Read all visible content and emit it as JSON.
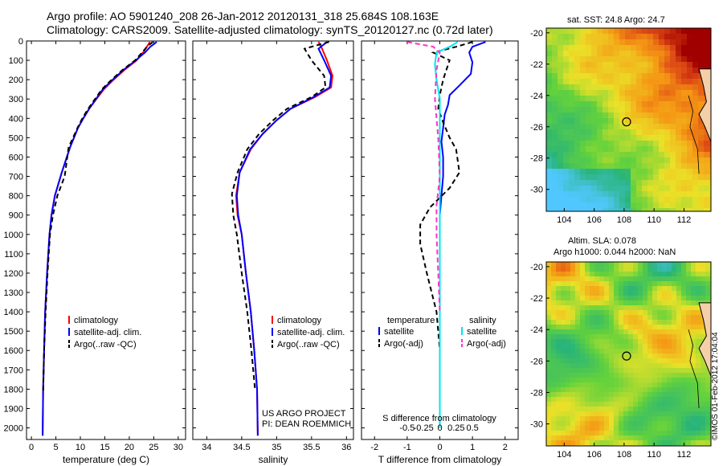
{
  "header": {
    "line1": "Argo profile: AO 5901240_208 26-Jan-2012 20120131_318 25.684S 108.163E",
    "line2": "Climatology: CARS2009. Satellite-adjusted climatology: synTS_20120127.nc (0.72d later)"
  },
  "colors": {
    "climatology": "#ff0000",
    "satellite": "#0000ff",
    "argo": "#000000",
    "sal_satellite": "#00e5ee",
    "sal_argo": "#ff33cc"
  },
  "chart_data": [
    {
      "type": "line",
      "name": "temperature-profile",
      "xlabel": "temperature (deg C)",
      "ylabel": "",
      "xlim": [
        -1,
        31.5
      ],
      "ylim": [
        2060,
        0
      ],
      "xticks": [
        0,
        5,
        10,
        15,
        20,
        25,
        30
      ],
      "yticks": [
        0,
        100,
        200,
        300,
        400,
        500,
        600,
        700,
        800,
        900,
        1000,
        1100,
        1200,
        1300,
        1400,
        1500,
        1600,
        1700,
        1800,
        1900,
        2000
      ],
      "legend": [
        "climatology",
        "satellite-adj. clim.",
        "Argo(..raw -QC)"
      ],
      "legend_position": "lower-center",
      "series": [
        {
          "name": "climatology",
          "style": "solid",
          "x": [
            24.2,
            23.6,
            22.8,
            21.5,
            19.0,
            16.8,
            14.8,
            13.3,
            11.8,
            10.6,
            9.5,
            7.9,
            6.2,
            4.8,
            4.1,
            3.7,
            3.2,
            2.8,
            2.6,
            2.4,
            2.3
          ],
          "y": [
            5,
            30,
            60,
            100,
            150,
            200,
            250,
            300,
            350,
            400,
            450,
            550,
            680,
            800,
            900,
            1000,
            1200,
            1400,
            1600,
            1800,
            2040
          ]
        },
        {
          "name": "satellite-adj. clim.",
          "style": "solid",
          "x": [
            25.6,
            24.3,
            23.2,
            21.3,
            18.8,
            16.6,
            14.6,
            13.2,
            11.8,
            10.6,
            9.5,
            7.9,
            6.2,
            4.8,
            4.1,
            3.7,
            3.2,
            2.8,
            2.6,
            2.4,
            2.3
          ],
          "y": [
            5,
            30,
            60,
            100,
            150,
            200,
            250,
            300,
            350,
            400,
            450,
            550,
            680,
            800,
            900,
            1000,
            1200,
            1400,
            1600,
            1800,
            2040
          ]
        },
        {
          "name": "Argo(..raw -QC)",
          "style": "dashed",
          "x": [
            24.8,
            23.6,
            22.6,
            21.2,
            18.6,
            16.4,
            14.4,
            13.0,
            11.6,
            10.4,
            9.4,
            7.6,
            6.8,
            5.3,
            4.4,
            3.8,
            3.3,
            2.9,
            2.6,
            2.4
          ],
          "y": [
            5,
            30,
            60,
            100,
            150,
            200,
            250,
            300,
            350,
            400,
            450,
            550,
            700,
            800,
            900,
            1000,
            1200,
            1400,
            1600,
            1820
          ]
        }
      ]
    },
    {
      "type": "line",
      "name": "salinity-profile",
      "xlabel": "salinity",
      "ylabel": "",
      "xlim": [
        33.8,
        36.1
      ],
      "ylim": [
        2060,
        0
      ],
      "xticks": [
        34,
        34.5,
        35,
        35.5,
        36
      ],
      "legend": [
        "climatology",
        "satellite-adj. clim.",
        "Argo(..raw -QC)"
      ],
      "legend_position": "lower-right",
      "annotation": [
        "US ARGO PROJECT",
        "PI: DEAN ROEMMICH"
      ],
      "series": [
        {
          "name": "climatology",
          "style": "solid",
          "x": [
            35.6,
            35.65,
            35.72,
            35.8,
            35.78,
            35.55,
            35.2,
            35.0,
            34.8,
            34.63,
            34.47,
            34.42,
            34.44,
            34.5,
            34.56,
            34.63,
            34.68,
            34.72,
            34.73
          ],
          "y": [
            5,
            40,
            100,
            180,
            240,
            290,
            350,
            410,
            480,
            560,
            680,
            800,
            900,
            1000,
            1200,
            1400,
            1600,
            1800,
            2040
          ]
        },
        {
          "name": "satellite-adj. clim.",
          "style": "solid",
          "x": [
            35.72,
            35.6,
            35.68,
            35.78,
            35.76,
            35.53,
            35.2,
            35.0,
            34.8,
            34.62,
            34.47,
            34.43,
            34.45,
            34.5,
            34.56,
            34.63,
            34.68,
            34.72,
            34.73
          ],
          "y": [
            5,
            40,
            100,
            180,
            240,
            290,
            350,
            410,
            480,
            560,
            680,
            800,
            900,
            1000,
            1200,
            1400,
            1600,
            1800,
            2040
          ]
        },
        {
          "name": "Argo(..raw -QC)",
          "style": "dashed",
          "x": [
            35.75,
            35.4,
            35.5,
            35.68,
            35.7,
            35.5,
            35.15,
            34.95,
            34.75,
            34.58,
            34.44,
            34.36,
            34.38,
            34.43,
            34.5,
            34.58,
            34.64,
            34.69
          ],
          "y": [
            5,
            40,
            100,
            180,
            240,
            290,
            350,
            410,
            480,
            560,
            680,
            790,
            900,
            1000,
            1200,
            1400,
            1600,
            1800
          ]
        }
      ]
    },
    {
      "type": "line",
      "name": "difference-profile",
      "xlabel": "T difference from climatology",
      "top_axis_label": "S difference from climatology",
      "xlim": [
        -2.4,
        2.4
      ],
      "ylim": [
        2060,
        0
      ],
      "xticks": [
        -2,
        -1,
        0,
        1,
        2
      ],
      "top_tick_labels": [
        "-0.5",
        "-0.25",
        "0",
        "0.25",
        "0.5"
      ],
      "legend_groups": [
        "temperature",
        "salinity"
      ],
      "legend": [
        "satellite",
        "Argo(-adj)",
        "satellite",
        "Argo(-adj)"
      ],
      "legend_position": "lower-center",
      "series": [
        {
          "name": "temperature satellite",
          "style": "solid",
          "x": [
            1.4,
            1.0,
            0.9,
            1.0,
            0.95,
            0.6,
            0.3,
            0.25,
            0.15,
            0.1,
            0.05,
            0.1,
            0.1,
            0.05,
            0.0,
            0.0,
            0.0,
            0.0,
            0.0
          ],
          "y": [
            5,
            30,
            60,
            110,
            170,
            230,
            280,
            330,
            380,
            450,
            520,
            600,
            700,
            800,
            900,
            1100,
            1400,
            1700,
            2000
          ]
        },
        {
          "name": "temperature Argo(-adj)",
          "style": "dashed",
          "x": [
            1.0,
            0.5,
            -0.2,
            0.3,
            0.2,
            0.1,
            0.0,
            -0.05,
            0.1,
            0.3,
            0.5,
            0.6,
            0.3,
            -0.3,
            -0.6,
            -0.6,
            -0.4,
            -0.1,
            0.0,
            0.0
          ],
          "y": [
            5,
            30,
            60,
            100,
            150,
            200,
            280,
            350,
            420,
            500,
            560,
            680,
            760,
            860,
            950,
            1050,
            1200,
            1400,
            1600,
            1800
          ]
        },
        {
          "name": "salinity satellite",
          "style": "solid",
          "x": [
            0.55,
            0.3,
            -0.1,
            -0.15,
            -0.1,
            0.0,
            0.0,
            0.0,
            0.0,
            0.0,
            0.0
          ],
          "y": [
            5,
            30,
            60,
            120,
            200,
            300,
            500,
            800,
            1100,
            1500,
            2000
          ]
        },
        {
          "name": "salinity Argo(-adj)",
          "style": "dashed",
          "x": [
            -1.0,
            -0.2,
            0.0,
            -0.1,
            -0.15,
            -0.1,
            -0.05,
            0.0,
            -0.1,
            -0.1,
            -0.05,
            0.0
          ],
          "y": [
            5,
            30,
            60,
            150,
            300,
            400,
            500,
            700,
            850,
            1000,
            1200,
            1400
          ]
        }
      ]
    },
    {
      "type": "heatmap",
      "name": "sst-map",
      "title": "sat. SST: 24.8  Argo: 24.7",
      "xlim": [
        102.8,
        113.8
      ],
      "ylim": [
        -31.4,
        -19.7
      ],
      "xticks": [
        104,
        106,
        108,
        110,
        112
      ],
      "yticks": [
        -20,
        -22,
        -24,
        -26,
        -28,
        -30
      ],
      "argo_position": {
        "lon": 108.163,
        "lat": -25.684
      }
    },
    {
      "type": "heatmap",
      "name": "sla-map",
      "title_line1": "Altim. SLA: 0.078",
      "title_line2": "Argo h1000: 0.044  h2000: NaN",
      "xlim": [
        102.8,
        113.8
      ],
      "ylim": [
        -31.4,
        -19.7
      ],
      "xticks": [
        104,
        106,
        108,
        110,
        112
      ],
      "yticks": [
        -20,
        -22,
        -24,
        -26,
        -28,
        -30
      ],
      "argo_position": {
        "lon": 108.163,
        "lat": -25.684
      }
    }
  ],
  "footer": {
    "side_label": "©IMOS 01-Feb-2012 17:04:04"
  }
}
